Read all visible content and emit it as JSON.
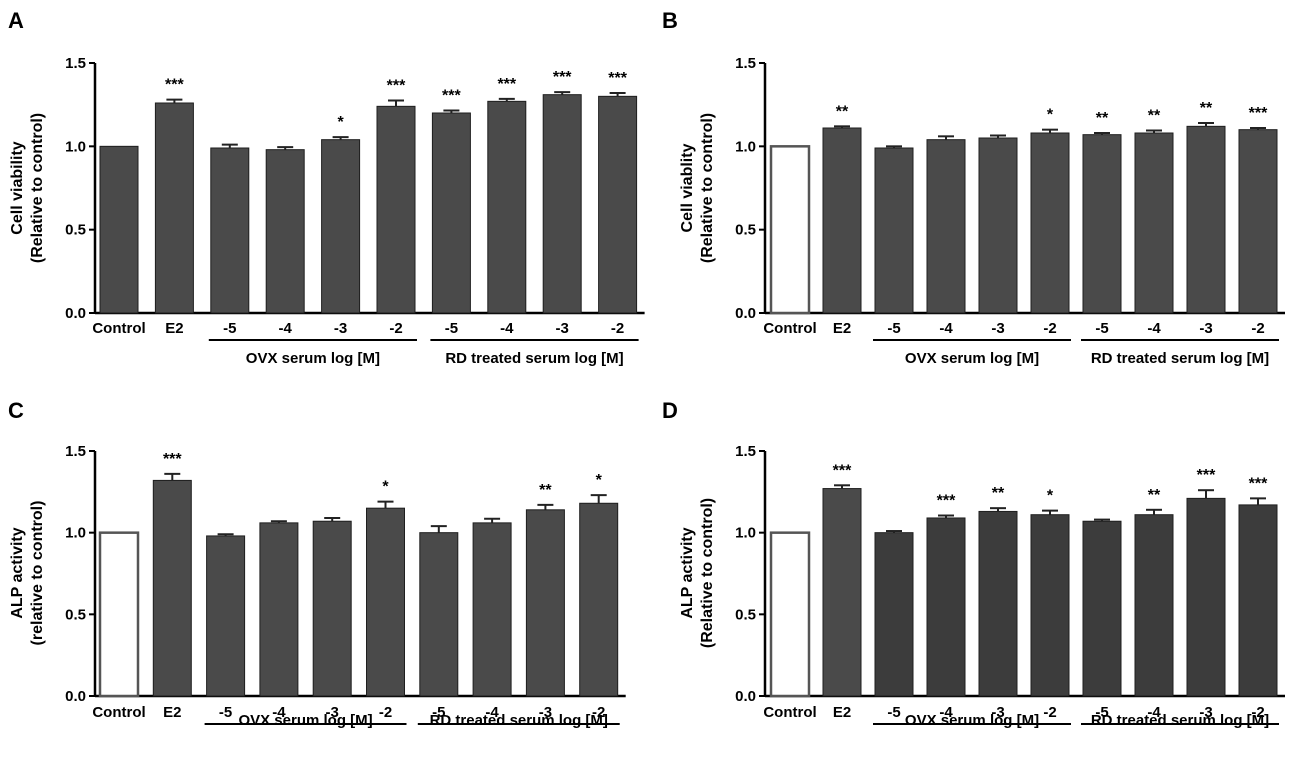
{
  "chart_data": [
    {
      "panel": "A",
      "type": "bar",
      "ylabel": "Cell viability",
      "ylabel2": "(Relative to control)",
      "ylim": [
        0,
        1.5
      ],
      "yticks": [
        "0.0",
        "0.5",
        "1.0",
        "1.5"
      ],
      "ytick_values": [
        0,
        0.5,
        1.0,
        1.5
      ],
      "categories": [
        "Control",
        "E2",
        "-5",
        "-4",
        "-3",
        "-2",
        "-5",
        "-4",
        "-3",
        "-2"
      ],
      "values": [
        1.0,
        1.26,
        0.99,
        0.98,
        1.04,
        1.24,
        1.2,
        1.27,
        1.31,
        1.3
      ],
      "errors": [
        0.0,
        0.02,
        0.02,
        0.015,
        0.015,
        0.035,
        0.015,
        0.015,
        0.015,
        0.02
      ],
      "significance": [
        "",
        "***",
        "",
        "",
        "*",
        "***",
        "***",
        "***",
        "***",
        "***"
      ],
      "control_bar_open": false,
      "groups": [
        {
          "label": "OVX serum log [M]",
          "start": 2,
          "end": 5
        },
        {
          "label": "RD treated serum log [M]",
          "start": 6,
          "end": 9
        }
      ]
    },
    {
      "panel": "B",
      "type": "bar",
      "ylabel": "Cell viablity",
      "ylabel2": "(Relative to control)",
      "ylim": [
        0,
        1.5
      ],
      "yticks": [
        "0.0",
        "0.5",
        "1.0",
        "1.5"
      ],
      "ytick_values": [
        0,
        0.5,
        1.0,
        1.5
      ],
      "categories": [
        "Control",
        "E2",
        "-5",
        "-4",
        "-3",
        "-2",
        "-5",
        "-4",
        "-3",
        "-2"
      ],
      "values": [
        1.0,
        1.11,
        0.99,
        1.04,
        1.05,
        1.08,
        1.07,
        1.08,
        1.12,
        1.1
      ],
      "errors": [
        0.0,
        0.01,
        0.01,
        0.02,
        0.015,
        0.02,
        0.01,
        0.015,
        0.02,
        0.01
      ],
      "significance": [
        "",
        "**",
        "",
        "",
        "",
        "*",
        "**",
        "**",
        "**",
        "***"
      ],
      "control_bar_open": true,
      "groups": [
        {
          "label": "OVX serum log [M]",
          "start": 2,
          "end": 5
        },
        {
          "label": "RD treated serum log [M]",
          "start": 6,
          "end": 9
        }
      ]
    },
    {
      "panel": "C",
      "type": "bar",
      "ylabel": "ALP activity",
      "ylabel2": "(relative to control)",
      "ylim": [
        0,
        1.5
      ],
      "yticks": [
        "0.0",
        "0.5",
        "1.0",
        "1.5"
      ],
      "ytick_values": [
        0,
        0.5,
        1.0,
        1.5
      ],
      "categories": [
        "Control",
        "E2",
        "-5",
        "-4",
        "-3",
        "-2",
        "-5",
        "-4",
        "-3",
        "-2"
      ],
      "values": [
        1.0,
        1.32,
        0.98,
        1.06,
        1.07,
        1.15,
        1.0,
        1.06,
        1.14,
        1.18
      ],
      "errors": [
        0.0,
        0.04,
        0.01,
        0.01,
        0.02,
        0.04,
        0.04,
        0.025,
        0.03,
        0.05
      ],
      "significance": [
        "",
        "***",
        "",
        "",
        "",
        "*",
        "",
        "",
        "**",
        "*"
      ],
      "control_bar_open": true,
      "groups": [
        {
          "label": "OVX serum log [M]",
          "start": 2,
          "end": 5
        },
        {
          "label": "RD treated serum log [M]",
          "start": 6,
          "end": 9
        }
      ]
    },
    {
      "panel": "D",
      "type": "bar",
      "ylabel": "ALP activity",
      "ylabel2": "(Relative to control)",
      "ylim": [
        0,
        1.5
      ],
      "yticks": [
        "0.0",
        "0.5",
        "1.0",
        "1.5"
      ],
      "ytick_values": [
        0,
        0.5,
        1.0,
        1.5
      ],
      "categories": [
        "Control",
        "E2",
        "-5",
        "-4",
        "-3",
        "-2",
        "-5",
        "-4",
        "-3",
        "-2"
      ],
      "values": [
        1.0,
        1.27,
        1.0,
        1.09,
        1.13,
        1.11,
        1.07,
        1.11,
        1.21,
        1.17
      ],
      "errors": [
        0.0,
        0.02,
        0.01,
        0.015,
        0.02,
        0.025,
        0.01,
        0.03,
        0.05,
        0.04
      ],
      "significance": [
        "",
        "***",
        "",
        "***",
        "**",
        "*",
        "",
        "**",
        "***",
        "***"
      ],
      "control_bar_open": true,
      "groups": [
        {
          "label": "OVX serum log [M]",
          "start": 2,
          "end": 5
        },
        {
          "label": "RD treated serum log [M]",
          "start": 6,
          "end": 9
        }
      ]
    }
  ],
  "colors": {
    "bar_fill": "#4a4a4a",
    "bar_fill_dark": "#3c3c3c",
    "bar_stroke": "#1e1e1e",
    "open_bar_fill": "#ffffff",
    "open_bar_stroke": "#555555",
    "axis": "#000000"
  }
}
